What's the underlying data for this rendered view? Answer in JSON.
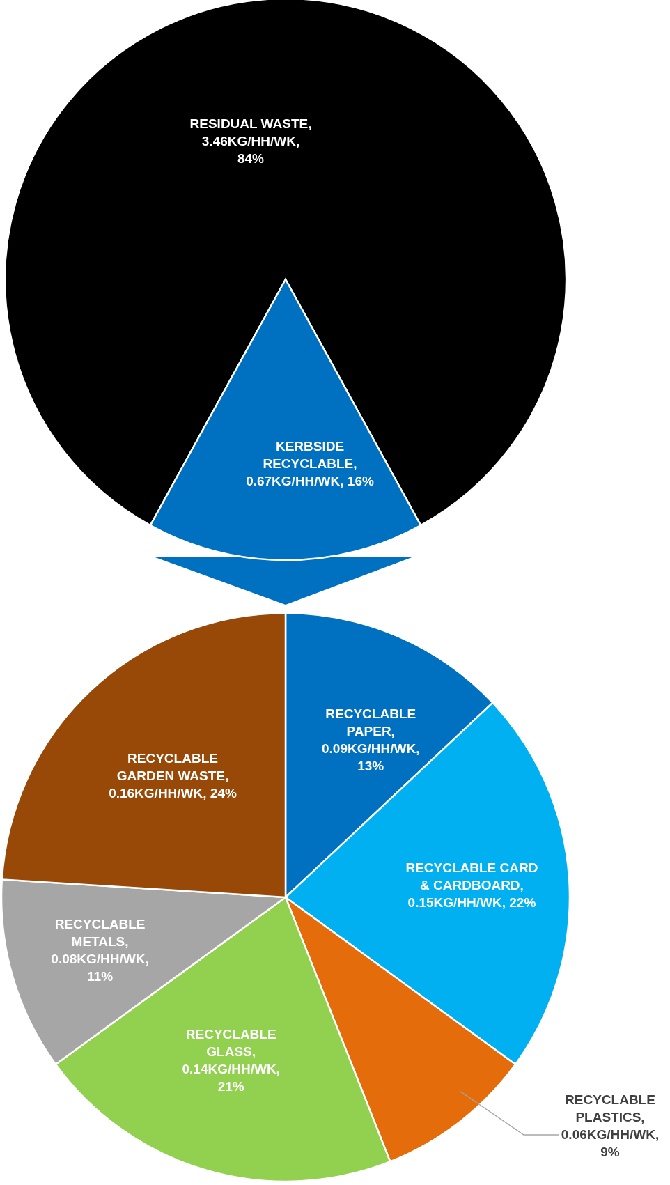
{
  "chart_data": [
    {
      "type": "pie",
      "categories": [
        "RESIDUAL WASTE",
        "KERBSIDE RECYCLABLE"
      ],
      "values": [
        84,
        16
      ],
      "colors": [
        "#000000",
        "#0070c0"
      ],
      "value_labels": [
        ", 3.46KG/HH/WK, 84%",
        ", 0.67KG/HH/WK, 16%"
      ]
    },
    {
      "type": "pie",
      "categories": [
        "RECYCLABLE PAPER",
        "RECYCLABLE CARD & CARDBOARD",
        "RECYCLABLE PLASTICS",
        "RECYCLABLE GLASS",
        "RECYCLABLE METALS",
        "RECYCLABLE GARDEN WASTE"
      ],
      "values": [
        13,
        22,
        9,
        21,
        11,
        24
      ],
      "colors": [
        "#0070c0",
        "#00b0f0",
        "#e46c0a",
        "#92d050",
        "#a6a6a6",
        "#984807"
      ],
      "value_labels": [
        ", 0.09KG/HH/WK, 13%",
        ", 0.15KG/HH/WK, 22%",
        ", 0.06KG/HH/WK, 9%",
        ", 0.14KG/HH/WK, 21%",
        ", 0.08KG/HH/WK, 11%",
        ", 0.16KG/HH/WK, 24%"
      ]
    }
  ]
}
